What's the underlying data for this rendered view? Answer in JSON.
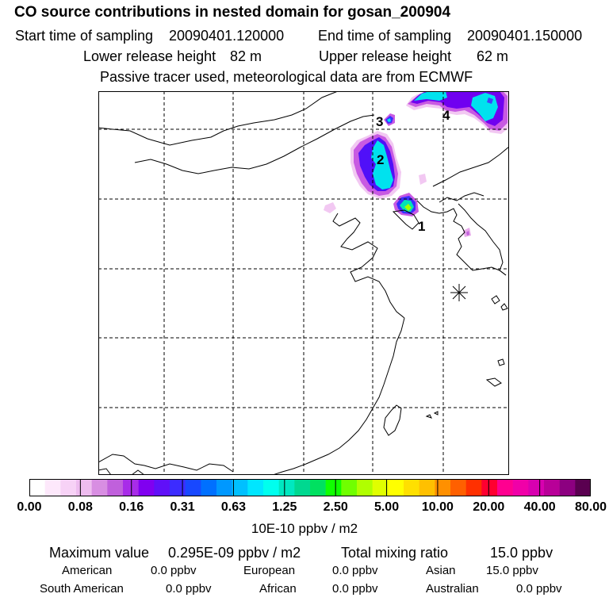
{
  "header": {
    "title": "CO  source contributions in nested domain for gosan_200904",
    "start_label": "Start time of sampling",
    "start_value": "20090401.120000",
    "end_label": "End time of sampling",
    "end_value": "20090401.150000",
    "lower_label": "Lower release height",
    "lower_value": "82 m",
    "upper_label": "Upper release height",
    "upper_value": "62 m",
    "tracer_note": "Passive tracer used, meteorological data are from ECMWF"
  },
  "map": {
    "markers": [
      "1",
      "2",
      "3",
      "4"
    ],
    "receptor_symbol": "station-star"
  },
  "legend": {
    "colors": [
      "#ffffff",
      "#fde8fb",
      "#f7d2f6",
      "#eebcef",
      "#d88ee2",
      "#c060dc",
      "#a82ce8",
      "#8000f0",
      "#6010f8",
      "#3c2cff",
      "#1848ff",
      "#0070ff",
      "#0098ff",
      "#00c0ff",
      "#00e6ff",
      "#00ffee",
      "#00e8c0",
      "#00d890",
      "#00e060",
      "#10ff00",
      "#70ff00",
      "#b0ff00",
      "#e0ff00",
      "#ffff00",
      "#ffe000",
      "#ffc000",
      "#ff9000",
      "#ff6000",
      "#ff3000",
      "#ff0030",
      "#ff0090",
      "#f000a8",
      "#d800b0",
      "#b80098",
      "#8c0080",
      "#5a0050"
    ],
    "ticks": [
      "0.00",
      "0.08",
      "0.16",
      "0.31",
      "0.63",
      "1.25",
      "2.50",
      "5.00",
      "10.00",
      "20.00",
      "40.00",
      "80.00"
    ],
    "unit": "10E-10 ppbv / m2"
  },
  "stats": {
    "max_label": "Maximum value",
    "max_value": "0.295E-09 ppbv / m2",
    "total_label": "Total mixing ratio",
    "total_value": "15.0 ppbv",
    "american_label": "American",
    "american_value": "0.0 ppbv",
    "european_label": "European",
    "european_value": "0.0 ppbv",
    "asian_label": "Asian",
    "asian_value": "15.0 ppbv",
    "south_american_label": "South American",
    "south_american_value": "0.0 ppbv",
    "african_label": "African",
    "african_value": "0.0 ppbv",
    "australian_label": "Australian",
    "australian_value": "0.0 ppbv"
  }
}
